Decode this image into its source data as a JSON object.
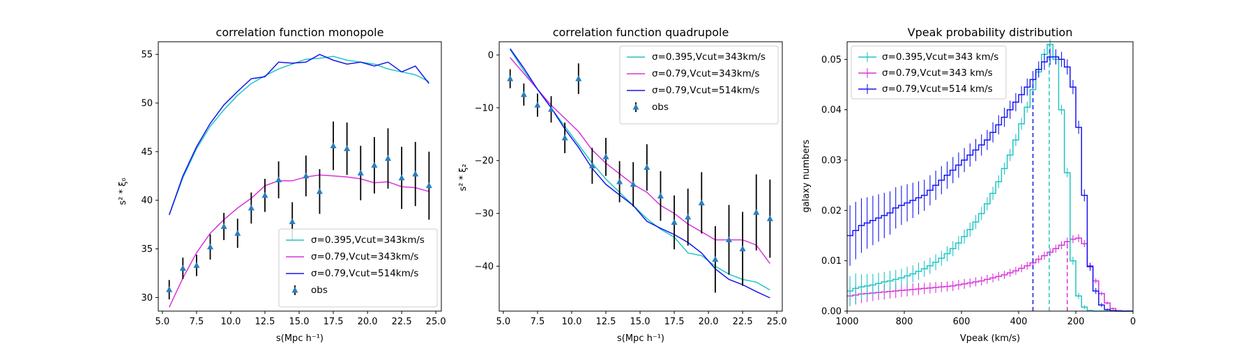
{
  "colors": {
    "c1": "#20c4c4",
    "c2": "#d932d9",
    "c3": "#1515ee",
    "obs": "#2a7fc0",
    "err": "#000000"
  },
  "chart_data": [
    {
      "type": "line",
      "title": "correlation function monopole",
      "xlabel": "s(Mpc h⁻¹)",
      "ylabel": "s² * ξ₀",
      "xlim": [
        4.7,
        25.4
      ],
      "ylim": [
        28.6,
        56.3
      ],
      "xticks": [
        5.0,
        7.5,
        10.0,
        12.5,
        15.0,
        17.5,
        20.0,
        22.5,
        25.0
      ],
      "xticklabels": [
        "5.0",
        "7.5",
        "10.0",
        "12.5",
        "15.0",
        "17.5",
        "20.0",
        "22.5",
        "25.0"
      ],
      "yticks": [
        30,
        35,
        40,
        45,
        50,
        55
      ],
      "yticklabels": [
        "30",
        "35",
        "40",
        "45",
        "50",
        "55"
      ],
      "legend_loc": "lower right",
      "x": [
        5.5,
        6.5,
        7.5,
        8.5,
        9.5,
        10.5,
        11.5,
        12.5,
        13.5,
        14.5,
        15.5,
        16.5,
        17.5,
        18.5,
        19.5,
        20.5,
        21.5,
        22.5,
        23.5,
        24.5
      ],
      "series": [
        {
          "name": "σ=0.395,Vcut=343km/s",
          "values": [
            38.5,
            42.3,
            45.3,
            47.6,
            49.3,
            50.8,
            52.0,
            52.8,
            53.5,
            54.0,
            54.5,
            54.6,
            54.8,
            54.4,
            54.2,
            54.0,
            53.5,
            53.2,
            52.9,
            52.2
          ]
        },
        {
          "name": "σ=0.79,Vcut=343km/s",
          "values": [
            29.0,
            32.0,
            34.6,
            36.6,
            38.0,
            39.2,
            40.2,
            41.5,
            42.0,
            42.0,
            42.4,
            42.6,
            42.5,
            42.4,
            42.2,
            41.8,
            41.9,
            41.4,
            41.3,
            40.9
          ]
        },
        {
          "name": "σ=0.79,Vcut=514km/s",
          "values": [
            38.5,
            42.5,
            45.5,
            47.9,
            49.8,
            51.2,
            52.5,
            52.7,
            54.2,
            54.1,
            54.2,
            55.0,
            54.4,
            54.0,
            54.2,
            53.8,
            54.2,
            53.2,
            53.8,
            52.0
          ]
        }
      ],
      "obs": {
        "name": "obs",
        "values": [
          30.8,
          33.0,
          33.3,
          35.2,
          37.3,
          36.6,
          39.2,
          40.5,
          42.1,
          37.8,
          42.5,
          40.9,
          45.6,
          45.3,
          42.8,
          43.6,
          44.3,
          42.3,
          42.7,
          41.5
        ],
        "errors": [
          1.0,
          1.1,
          1.1,
          1.3,
          1.4,
          1.5,
          1.6,
          1.7,
          1.9,
          2.0,
          2.1,
          2.3,
          2.5,
          2.7,
          2.8,
          2.9,
          3.1,
          3.2,
          3.3,
          3.5
        ]
      }
    },
    {
      "type": "line",
      "title": "correlation function quadrupole",
      "xlabel": "s(Mpc h⁻¹)",
      "ylabel": "s² * ξ₂",
      "xlim": [
        4.7,
        25.4
      ],
      "ylim": [
        -48.5,
        2.5
      ],
      "xticks": [
        5.0,
        7.5,
        10.0,
        12.5,
        15.0,
        17.5,
        20.0,
        22.5,
        25.0
      ],
      "xticklabels": [
        "5.0",
        "7.5",
        "10.0",
        "12.5",
        "15.0",
        "17.5",
        "20.0",
        "22.5",
        "25.0"
      ],
      "yticks": [
        0,
        -10,
        -20,
        -30,
        -40
      ],
      "yticklabels": [
        "0",
        "−10",
        "−20",
        "−30",
        "−40"
      ],
      "legend_loc": "upper right",
      "x": [
        5.5,
        6.5,
        7.5,
        8.5,
        9.5,
        10.5,
        11.5,
        12.5,
        13.5,
        14.5,
        15.5,
        16.5,
        17.5,
        18.5,
        19.5,
        20.5,
        21.5,
        22.5,
        23.5,
        24.5
      ],
      "series": [
        {
          "name": "σ=0.395,Vcut=343km/s",
          "values": [
            1.0,
            -3.0,
            -6.5,
            -10.0,
            -13.5,
            -17.0,
            -20.5,
            -23.5,
            -26.0,
            -28.5,
            -31.0,
            -33.0,
            -34.5,
            -37.5,
            -38.0,
            -40.0,
            -41.5,
            -42.5,
            -43.0,
            -44.5
          ]
        },
        {
          "name": "σ=0.79,Vcut=343km/s",
          "values": [
            -0.5,
            -3.5,
            -6.5,
            -9.5,
            -12.0,
            -14.5,
            -18.0,
            -20.5,
            -22.5,
            -24.5,
            -26.0,
            -28.5,
            -30.0,
            -32.0,
            -33.5,
            -35.0,
            -35.0,
            -35.0,
            -36.0,
            -39.5
          ]
        },
        {
          "name": "σ=0.79,Vcut=514km/s",
          "values": [
            1.2,
            -2.5,
            -6.5,
            -10.0,
            -14.0,
            -17.5,
            -21.5,
            -24.5,
            -26.5,
            -28.5,
            -31.5,
            -32.8,
            -34.0,
            -35.5,
            -37.5,
            -40.5,
            -42.5,
            -43.5,
            -44.8,
            -46.0
          ]
        }
      ],
      "obs": {
        "name": "obs",
        "values": [
          -4.5,
          -7.5,
          -9.5,
          -10.3,
          -15.7,
          -4.5,
          -21.0,
          -19.3,
          -24.0,
          -24.5,
          -21.3,
          -26.7,
          -31.7,
          -30.7,
          -28.0,
          -38.7,
          -35.0,
          -36.7,
          -29.8,
          -31.0
        ],
        "errors": [
          1.8,
          2.1,
          2.2,
          2.5,
          2.9,
          2.9,
          3.4,
          3.6,
          3.9,
          4.2,
          4.4,
          4.7,
          5.1,
          5.4,
          5.8,
          6.3,
          6.6,
          7.0,
          7.2,
          7.4
        ]
      }
    },
    {
      "type": "line",
      "title": "Vpeak probability distribution",
      "xlabel": "Vpeak (km/s)",
      "ylabel": "galaxy numbers",
      "xlim": [
        1000,
        0
      ],
      "ylim": [
        0,
        0.0535
      ],
      "xticks": [
        1000,
        800,
        600,
        400,
        200,
        0
      ],
      "xticklabels": [
        "1000",
        "800",
        "600",
        "400",
        "200",
        "0"
      ],
      "yticks": [
        0.0,
        0.01,
        0.02,
        0.03,
        0.04,
        0.05
      ],
      "yticklabels": [
        "0.00",
        "0.01",
        "0.02",
        "0.03",
        "0.04",
        "0.05"
      ],
      "legend_loc": "upper left",
      "bin_edges_x": [
        1000,
        980,
        960,
        940,
        920,
        900,
        880,
        860,
        840,
        820,
        800,
        780,
        760,
        740,
        720,
        700,
        680,
        660,
        640,
        620,
        600,
        580,
        560,
        540,
        520,
        500,
        480,
        460,
        440,
        420,
        400,
        380,
        360,
        340,
        320,
        300,
        280,
        260,
        240,
        220,
        200,
        180,
        160,
        140,
        120,
        100,
        80,
        60,
        40,
        20,
        0
      ],
      "series": [
        {
          "name": "σ=0.395,Vcut=343 km/s",
          "values": [
            0.004,
            0.0045,
            0.0048,
            0.005,
            0.0052,
            0.0055,
            0.0058,
            0.006,
            0.0063,
            0.0066,
            0.007,
            0.0074,
            0.0079,
            0.0084,
            0.009,
            0.0097,
            0.0105,
            0.0114,
            0.0124,
            0.0135,
            0.0148,
            0.0162,
            0.0177,
            0.0194,
            0.0213,
            0.0234,
            0.0257,
            0.0283,
            0.031,
            0.034,
            0.0372,
            0.0405,
            0.044,
            0.0475,
            0.051,
            0.053,
            0.05,
            0.04,
            0.0275,
            0.01,
            0.003,
            0.0008,
            0.0001,
            0,
            0,
            0,
            0,
            0,
            0,
            0
          ],
          "errors": [
            0.003,
            0.003,
            0.0025,
            0.0024,
            0.0022,
            0.0021,
            0.002,
            0.002,
            0.0019,
            0.0018,
            0.0018,
            0.0017,
            0.0017,
            0.0016,
            0.0016,
            0.0016,
            0.0015,
            0.0015,
            0.0015,
            0.0014,
            0.0014,
            0.0014,
            0.0014,
            0.0013,
            0.0013,
            0.0013,
            0.0013,
            0.0012,
            0.0012,
            0.0012,
            0.0012,
            0.0011,
            0.0011,
            0.0011,
            0.0011,
            0.001,
            0.001,
            0.001,
            0.0009,
            0.0008,
            0.0006,
            0.0004,
            0.0002,
            0,
            0,
            0,
            0,
            0,
            0,
            0
          ],
          "median": 293
        },
        {
          "name": "σ=0.79,Vcut=343 km/s",
          "values": [
            0.003,
            0.0032,
            0.0034,
            0.0035,
            0.0036,
            0.0037,
            0.0038,
            0.0039,
            0.004,
            0.0041,
            0.0042,
            0.0043,
            0.0044,
            0.0045,
            0.0046,
            0.0047,
            0.0048,
            0.0049,
            0.005,
            0.0052,
            0.0054,
            0.0056,
            0.0058,
            0.006,
            0.0063,
            0.0066,
            0.0069,
            0.0072,
            0.0076,
            0.008,
            0.0085,
            0.009,
            0.0096,
            0.0103,
            0.011,
            0.0117,
            0.0124,
            0.0131,
            0.0138,
            0.0143,
            0.0145,
            0.0134,
            0.009,
            0.006,
            0.0035,
            0.0016,
            0.0005,
            0.0001,
            0,
            0
          ],
          "errors": [
            0.002,
            0.0019,
            0.0018,
            0.0017,
            0.0016,
            0.0015,
            0.0015,
            0.0014,
            0.0014,
            0.0013,
            0.0013,
            0.0012,
            0.0012,
            0.0011,
            0.0011,
            0.0011,
            0.001,
            0.001,
            0.001,
            0.001,
            0.001,
            0.0009,
            0.0009,
            0.0009,
            0.0009,
            0.0009,
            0.0009,
            0.0008,
            0.0008,
            0.0008,
            0.0008,
            0.0008,
            0.0008,
            0.0008,
            0.0008,
            0.0008,
            0.0008,
            0.0008,
            0.0008,
            0.0008,
            0.0008,
            0.0007,
            0.0006,
            0.0005,
            0.0004,
            0.0003,
            0.0002,
            0.0001,
            0,
            0
          ],
          "median": 230
        },
        {
          "name": "σ=0.79,Vcut=514 km/s",
          "values": [
            0.015,
            0.016,
            0.017,
            0.0175,
            0.018,
            0.0185,
            0.019,
            0.0195,
            0.0205,
            0.021,
            0.0215,
            0.022,
            0.0225,
            0.023,
            0.024,
            0.025,
            0.026,
            0.027,
            0.028,
            0.029,
            0.03,
            0.031,
            0.032,
            0.033,
            0.034,
            0.0355,
            0.037,
            0.0385,
            0.04,
            0.0415,
            0.043,
            0.0445,
            0.046,
            0.048,
            0.0495,
            0.0505,
            0.0505,
            0.05,
            0.0485,
            0.0445,
            0.0365,
            0.023,
            0.0088,
            0.004,
            0.0012,
            0.0003,
            0.0001,
            0,
            0,
            0
          ],
          "errors": [
            0.006,
            0.0057,
            0.0054,
            0.0051,
            0.0049,
            0.0047,
            0.0045,
            0.0043,
            0.0041,
            0.0039,
            0.0037,
            0.0035,
            0.0033,
            0.0031,
            0.003,
            0.0029,
            0.0028,
            0.0027,
            0.0026,
            0.0025,
            0.0024,
            0.0023,
            0.0022,
            0.0021,
            0.002,
            0.002,
            0.0019,
            0.0019,
            0.0018,
            0.0018,
            0.0017,
            0.0017,
            0.0017,
            0.0016,
            0.0016,
            0.0016,
            0.0015,
            0.0015,
            0.0015,
            0.0014,
            0.0013,
            0.0012,
            0.0008,
            0.0006,
            0.0004,
            0.0002,
            0.0001,
            0,
            0,
            0
          ],
          "median": 350
        }
      ]
    }
  ]
}
